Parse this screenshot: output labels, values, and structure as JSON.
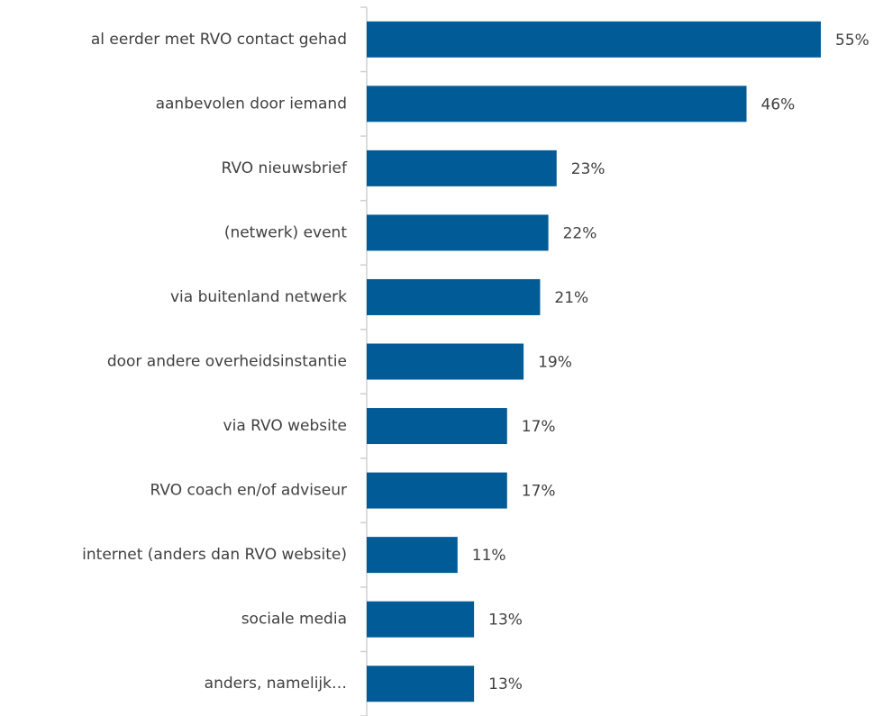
{
  "chart_data": {
    "type": "bar",
    "orientation": "horizontal",
    "categories": [
      "al eerder met RVO contact gehad",
      "aanbevolen door iemand",
      "RVO nieuwsbrief",
      "(netwerk) event",
      "via buitenland netwerk",
      "door andere overheidsinstantie",
      "via RVO website",
      "RVO coach en/of adviseur",
      "internet (anders dan RVO website)",
      "sociale media",
      "anders, namelijk…"
    ],
    "values": [
      55,
      46,
      23,
      22,
      21,
      19,
      17,
      17,
      11,
      13,
      13
    ],
    "value_labels": [
      "55%",
      "46%",
      "23%",
      "22%",
      "21%",
      "19%",
      "17%",
      "17%",
      "11%",
      "13%",
      "13%"
    ],
    "color": "#005b96"
  }
}
